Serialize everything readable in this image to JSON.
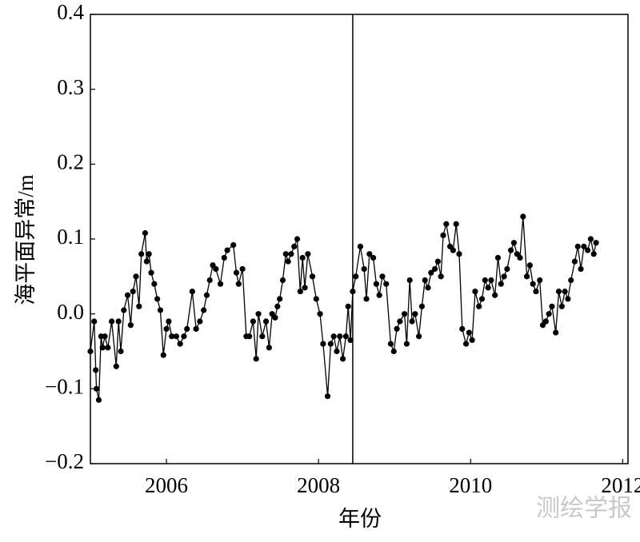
{
  "chart_data": {
    "type": "line",
    "y_label": "海平面异常/m",
    "x_label": "年份",
    "watermark": "测绘学报",
    "xlim": [
      2005,
      2012.07
    ],
    "ylim": [
      -0.2,
      0.4
    ],
    "xticks": [
      2006,
      2008,
      2010,
      2012
    ],
    "yticks": [
      0.4,
      0.3,
      0.2,
      0.1,
      {
        "value": 0,
        "label": "0.0"
      },
      {
        "value": -0.1,
        "label": "−0.1"
      },
      {
        "value": -0.2,
        "label": "−0.2"
      }
    ],
    "vline": 2008.45,
    "series": [
      {
        "color": "#000000",
        "x": [
          2005.0,
          2005.05,
          2005.07,
          2005.08,
          2005.11,
          2005.14,
          2005.16,
          2005.19,
          2005.23,
          2005.28,
          2005.34,
          2005.37,
          2005.4,
          2005.44,
          2005.49,
          2005.53,
          2005.56,
          2005.6,
          2005.64,
          2005.67,
          2005.72,
          2005.74,
          2005.77,
          2005.8,
          2005.84,
          2005.88,
          2005.92,
          2005.96,
          2006.0,
          2006.03,
          2006.07,
          2006.13,
          2006.18,
          2006.23,
          2006.27,
          2006.34,
          2006.39,
          2006.44,
          2006.49,
          2006.53,
          2006.57,
          2006.61,
          2006.65,
          2006.71,
          2006.76,
          2006.8,
          2006.88,
          2006.92,
          2006.95,
          2007.0,
          2007.05,
          2007.09,
          2007.14,
          2007.18,
          2007.21,
          2007.26,
          2007.31,
          2007.35,
          2007.39,
          2007.43,
          2007.46,
          2007.49,
          2007.53,
          2007.57,
          2007.6,
          2007.64,
          2007.68,
          2007.72,
          2007.76,
          2007.79,
          2007.82,
          2007.86,
          2007.92,
          2007.97,
          2008.02,
          2008.06,
          2008.12,
          2008.16,
          2008.2,
          2008.24,
          2008.28,
          2008.32,
          2008.36,
          2008.39,
          2008.42,
          2008.45,
          2008.49,
          2008.55,
          2008.6,
          2008.63,
          2008.67,
          2008.72,
          2008.76,
          2008.8,
          2008.84,
          2008.89,
          2008.95,
          2008.99,
          2009.03,
          2009.07,
          2009.13,
          2009.16,
          2009.2,
          2009.23,
          2009.27,
          2009.32,
          2009.36,
          2009.4,
          2009.44,
          2009.48,
          2009.53,
          2009.57,
          2009.61,
          2009.64,
          2009.68,
          2009.73,
          2009.77,
          2009.81,
          2009.85,
          2009.89,
          2009.94,
          2009.98,
          2010.02,
          2010.06,
          2010.11,
          2010.15,
          2010.19,
          2010.23,
          2010.27,
          2010.32,
          2010.36,
          2010.4,
          2010.44,
          2010.48,
          2010.53,
          2010.57,
          2010.61,
          2010.65,
          2010.69,
          2010.74,
          2010.78,
          2010.82,
          2010.86,
          2010.91,
          2010.95,
          2010.99,
          2011.03,
          2011.07,
          2011.12,
          2011.16,
          2011.2,
          2011.24,
          2011.28,
          2011.32,
          2011.37,
          2011.41,
          2011.45,
          2011.49,
          2011.54,
          2011.58,
          2011.62,
          2011.65
        ],
        "values": [
          -0.05,
          -0.01,
          -0.075,
          -0.1,
          -0.115,
          -0.03,
          -0.045,
          -0.03,
          -0.045,
          -0.01,
          -0.07,
          -0.01,
          -0.05,
          0.005,
          0.025,
          -0.015,
          0.03,
          0.05,
          0.01,
          0.08,
          0.108,
          0.07,
          0.08,
          0.055,
          0.04,
          0.02,
          0.005,
          -0.055,
          -0.02,
          -0.01,
          -0.03,
          -0.03,
          -0.04,
          -0.03,
          -0.02,
          0.03,
          -0.02,
          -0.01,
          0.005,
          0.025,
          0.045,
          0.065,
          0.06,
          0.04,
          0.075,
          0.085,
          0.092,
          0.055,
          0.04,
          0.06,
          -0.03,
          -0.03,
          -0.01,
          -0.06,
          0.0,
          -0.03,
          -0.01,
          -0.045,
          0.0,
          -0.005,
          0.01,
          0.02,
          0.045,
          0.08,
          0.07,
          0.08,
          0.09,
          0.1,
          0.03,
          0.075,
          0.035,
          0.08,
          0.05,
          0.02,
          0.0,
          -0.04,
          -0.11,
          -0.04,
          -0.03,
          -0.05,
          -0.03,
          -0.06,
          -0.03,
          0.01,
          -0.035,
          0.03,
          0.05,
          0.09,
          0.06,
          0.02,
          0.08,
          0.075,
          0.04,
          0.025,
          0.05,
          0.04,
          -0.04,
          -0.05,
          -0.02,
          -0.01,
          0.0,
          -0.04,
          0.045,
          -0.01,
          0.0,
          -0.03,
          0.01,
          0.045,
          0.035,
          0.055,
          0.06,
          0.07,
          0.05,
          0.105,
          0.12,
          0.09,
          0.085,
          0.12,
          0.08,
          -0.02,
          -0.04,
          -0.025,
          -0.035,
          0.03,
          0.01,
          0.02,
          0.045,
          0.035,
          0.045,
          0.025,
          0.075,
          0.04,
          0.05,
          0.06,
          0.085,
          0.095,
          0.08,
          0.075,
          0.13,
          0.05,
          0.065,
          0.04,
          0.03,
          0.045,
          -0.015,
          -0.01,
          0.0,
          0.01,
          -0.025,
          0.03,
          0.01,
          0.03,
          0.02,
          0.045,
          0.07,
          0.09,
          0.06,
          0.09,
          0.085,
          0.1,
          0.08,
          0.095
        ]
      }
    ]
  }
}
